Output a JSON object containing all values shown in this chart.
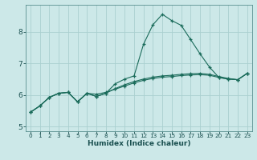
{
  "title": "",
  "xlabel": "Humidex (Indice chaleur)",
  "bg_color": "#cce8e8",
  "grid_color": "#aacfcf",
  "line_color": "#1a6b5a",
  "xlim": [
    -0.5,
    23.5
  ],
  "ylim": [
    4.85,
    8.85
  ],
  "xticks": [
    0,
    1,
    2,
    3,
    4,
    5,
    6,
    7,
    8,
    9,
    10,
    11,
    12,
    13,
    14,
    15,
    16,
    17,
    18,
    19,
    20,
    21,
    22,
    23
  ],
  "yticks": [
    5,
    6,
    7,
    8
  ],
  "series": [
    [
      5.45,
      5.65,
      5.92,
      6.05,
      6.08,
      5.78,
      6.05,
      5.95,
      6.05,
      6.35,
      6.5,
      6.6,
      7.6,
      8.22,
      8.55,
      8.35,
      8.2,
      7.75,
      7.3,
      6.88,
      6.55,
      6.5,
      6.48,
      6.68
    ],
    [
      5.45,
      5.65,
      5.92,
      6.05,
      6.08,
      5.78,
      6.05,
      5.95,
      6.05,
      6.2,
      6.32,
      6.42,
      6.5,
      6.56,
      6.6,
      6.62,
      6.65,
      6.67,
      6.68,
      6.65,
      6.58,
      6.52,
      6.48,
      6.68
    ],
    [
      5.45,
      5.65,
      5.92,
      6.05,
      6.08,
      5.78,
      6.05,
      6.02,
      6.08,
      6.18,
      6.28,
      6.38,
      6.46,
      6.52,
      6.56,
      6.58,
      6.61,
      6.63,
      6.64,
      6.62,
      6.55,
      6.5,
      6.48,
      6.68
    ]
  ]
}
